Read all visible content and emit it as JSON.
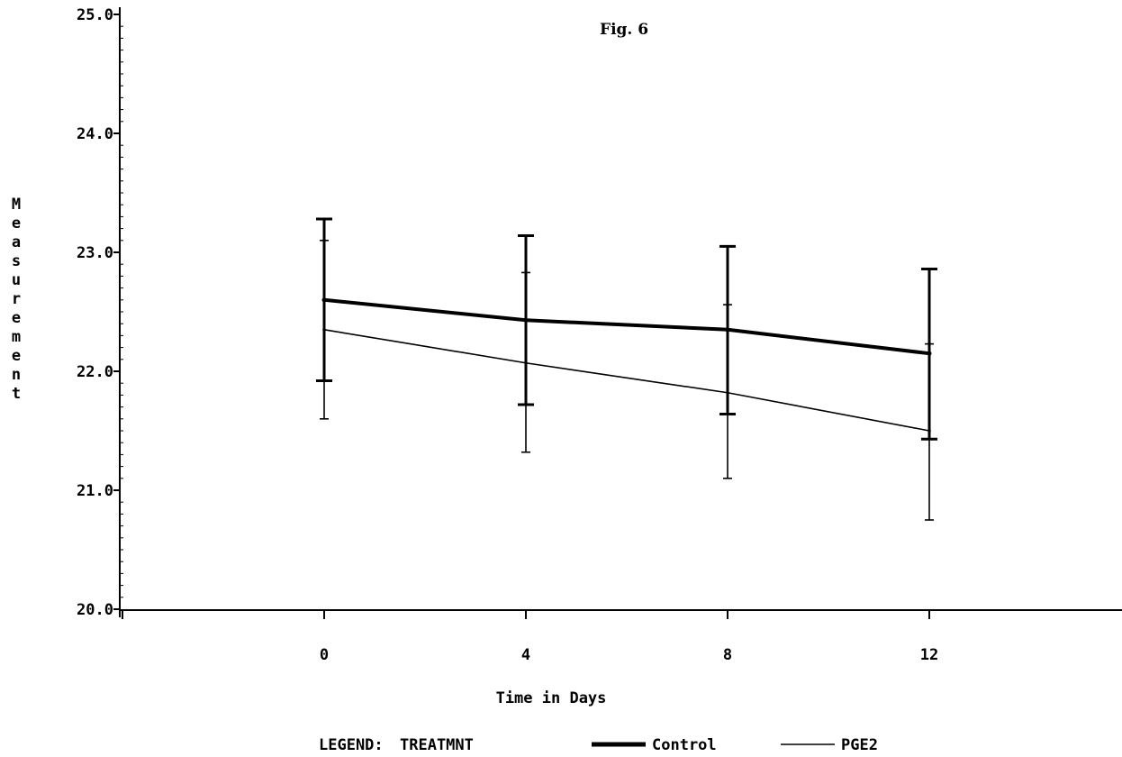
{
  "chart_data": {
    "type": "line",
    "title": "Fig. 6",
    "xlabel": "Time in Days",
    "ylabel": "Measurement",
    "x": [
      0,
      4,
      8,
      12
    ],
    "x_tick_labels": [
      "0",
      "4",
      "8",
      "12"
    ],
    "xlim": [
      -4,
      16
    ],
    "ylim": [
      20.0,
      25.0
    ],
    "y_tick_labels": [
      "20.0",
      "21.0",
      "22.0",
      "23.0",
      "24.0",
      "25.0"
    ],
    "y_ticks": [
      20.0,
      21.0,
      22.0,
      23.0,
      24.0,
      25.0
    ],
    "grid": false,
    "legend": {
      "position": "bottom",
      "label": "LEGEND:",
      "variable": "TREATMNT"
    },
    "series": [
      {
        "name": "Control",
        "style": "thick",
        "color": "#000000",
        "values": [
          22.6,
          22.43,
          22.35,
          22.15
        ],
        "error_low": [
          21.92,
          21.72,
          21.64,
          21.43
        ],
        "error_high": [
          23.28,
          23.14,
          23.05,
          22.86
        ]
      },
      {
        "name": "PGE2",
        "style": "thin",
        "color": "#000000",
        "values": [
          22.35,
          22.07,
          21.82,
          21.5
        ],
        "error_low": [
          21.6,
          21.32,
          21.1,
          20.75
        ],
        "error_high": [
          23.1,
          22.83,
          22.56,
          22.23
        ]
      }
    ]
  }
}
